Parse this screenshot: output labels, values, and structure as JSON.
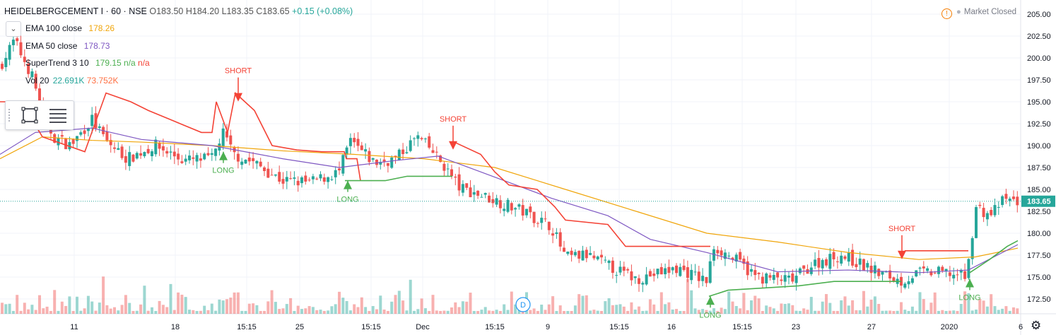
{
  "header": {
    "symbol": "HEIDELBERGCEMENT I · 60 · NSE",
    "o": "O183.50",
    "h": "H184.20",
    "l": "L183.35",
    "c": "C183.65",
    "chg": "+0.15 (+0.08%)"
  },
  "indicators": [
    {
      "name": "EMA 100 close",
      "value": "178.26",
      "color": "#f0a50a"
    },
    {
      "name": "EMA 50 close",
      "value": "178.73",
      "color": "#7e57c2"
    },
    {
      "name": "SuperTrend 3 10",
      "value": "179.15",
      "extra": "n/a",
      "extra2": "n/a",
      "color": "#4caf50",
      "color2": "#f44336"
    },
    {
      "name": "Vol 20",
      "value": "22.691K",
      "extra": "73.752K",
      "color": "#26a69a",
      "color2": "#ff7043"
    }
  ],
  "market_status": "Market Closed",
  "tool_icons": [
    "rectangle-icon",
    "lines-icon"
  ],
  "collapse_icon": "chevron-down-icon",
  "settings_icon": "gear-icon",
  "chart_data": {
    "type": "candlestick",
    "ylim": [
      171.5,
      206.0
    ],
    "y_ticks": [
      "172.50",
      "175.00",
      "177.50",
      "180.00",
      "182.50",
      "185.00",
      "187.50",
      "190.00",
      "192.50",
      "195.00",
      "197.50",
      "200.00",
      "202.50",
      "205.00"
    ],
    "x_ticks": [
      "11",
      "18",
      "15:15",
      "25",
      "15:15",
      "Dec",
      "15:15",
      "9",
      "15:15",
      "16",
      "15:15",
      "23",
      "27",
      "2020",
      "6"
    ],
    "last_price": "183.65",
    "colors": {
      "up": "#26a69a",
      "down": "#ef5350",
      "st_up": "#4caf50",
      "st_down": "#f44336",
      "ema100": "#f0a50a",
      "ema50": "#7e57c2",
      "grid": "#f0f3fa"
    },
    "supertrend_down": [
      [
        0,
        195.0
      ],
      [
        30,
        195.0
      ],
      [
        60,
        191.0
      ],
      [
        120,
        189.3
      ],
      [
        150,
        196.0
      ],
      [
        185,
        195.0
      ],
      [
        210,
        194.0
      ],
      [
        240,
        193.0
      ],
      [
        285,
        191.5
      ],
      [
        300,
        191.5
      ],
      [
        306,
        195.0
      ],
      [
        322,
        191.5
      ],
      [
        333,
        196.0
      ],
      [
        360,
        194.0
      ],
      [
        385,
        190.0
      ],
      [
        420,
        189.5
      ],
      [
        455,
        189.3
      ],
      [
        487,
        189.3
      ],
      [
        490,
        188.5
      ],
      [
        505,
        188.5
      ],
      [
        510,
        186.0
      ]
    ],
    "supertrend_up_1": [
      [
        488,
        186.0
      ],
      [
        545,
        186.0
      ],
      [
        576,
        186.5
      ],
      [
        640,
        186.5
      ]
    ],
    "supertrend_up_2": [
      [
        1003,
        172.8
      ],
      [
        1030,
        173.5
      ],
      [
        1130,
        174.0
      ],
      [
        1180,
        174.5
      ],
      [
        1260,
        174.5
      ],
      [
        1275,
        174.5
      ]
    ],
    "supertrend_up_3": [
      [
        1372,
        175.5
      ],
      [
        1400,
        177.0
      ],
      [
        1425,
        178.5
      ],
      [
        1440,
        179.15
      ]
    ],
    "supertrend_down_2": [
      [
        640,
        190.5
      ],
      [
        680,
        189.0
      ],
      [
        700,
        187.0
      ],
      [
        720,
        185.5
      ],
      [
        760,
        185.0
      ],
      [
        785,
        183.0
      ],
      [
        800,
        181.5
      ],
      [
        860,
        181.0
      ],
      [
        885,
        178.5
      ],
      [
        930,
        178.5
      ],
      [
        1000,
        178.5
      ],
      [
        1005,
        178.5
      ]
    ],
    "supertrend_down_3": [
      [
        1280,
        178.0
      ],
      [
        1370,
        178.0
      ]
    ],
    "ema100": [
      [
        0,
        188.5
      ],
      [
        60,
        191.0
      ],
      [
        130,
        190.6
      ],
      [
        200,
        190.4
      ],
      [
        300,
        190.0
      ],
      [
        400,
        189.4
      ],
      [
        500,
        189.0
      ],
      [
        600,
        188.5
      ],
      [
        700,
        187.5
      ],
      [
        800,
        185.0
      ],
      [
        900,
        182.5
      ],
      [
        1000,
        180.0
      ],
      [
        1100,
        179.0
      ],
      [
        1200,
        177.8
      ],
      [
        1300,
        177.0
      ],
      [
        1380,
        177.3
      ],
      [
        1440,
        178.3
      ]
    ],
    "ema50": [
      [
        0,
        189.0
      ],
      [
        50,
        191.5
      ],
      [
        130,
        192.0
      ],
      [
        200,
        190.7
      ],
      [
        300,
        190.0
      ],
      [
        400,
        188.5
      ],
      [
        480,
        187.5
      ],
      [
        560,
        188.3
      ],
      [
        620,
        188.8
      ],
      [
        680,
        187.0
      ],
      [
        780,
        184.0
      ],
      [
        860,
        182.0
      ],
      [
        920,
        179.3
      ],
      [
        1000,
        177.8
      ],
      [
        1100,
        175.6
      ],
      [
        1200,
        175.8
      ],
      [
        1300,
        175.5
      ],
      [
        1370,
        175.8
      ],
      [
        1440,
        178.7
      ]
    ],
    "annotations": [
      {
        "text": "SHORT",
        "type": "short",
        "x": 337,
        "y": 196.0
      },
      {
        "text": "LONG",
        "type": "long",
        "x": 316,
        "y": 189.3
      },
      {
        "text": "LONG",
        "type": "long",
        "x": 492,
        "y": 186.0
      },
      {
        "text": "SHORT",
        "type": "short",
        "x": 641,
        "y": 190.5
      },
      {
        "text": "LONG",
        "type": "long",
        "x": 1005,
        "y": 172.8
      },
      {
        "text": "SHORT",
        "type": "short",
        "x": 1276,
        "y": 178.0
      },
      {
        "text": "LONG",
        "type": "long",
        "x": 1372,
        "y": 174.8
      }
    ],
    "dividend_marker": "D"
  }
}
